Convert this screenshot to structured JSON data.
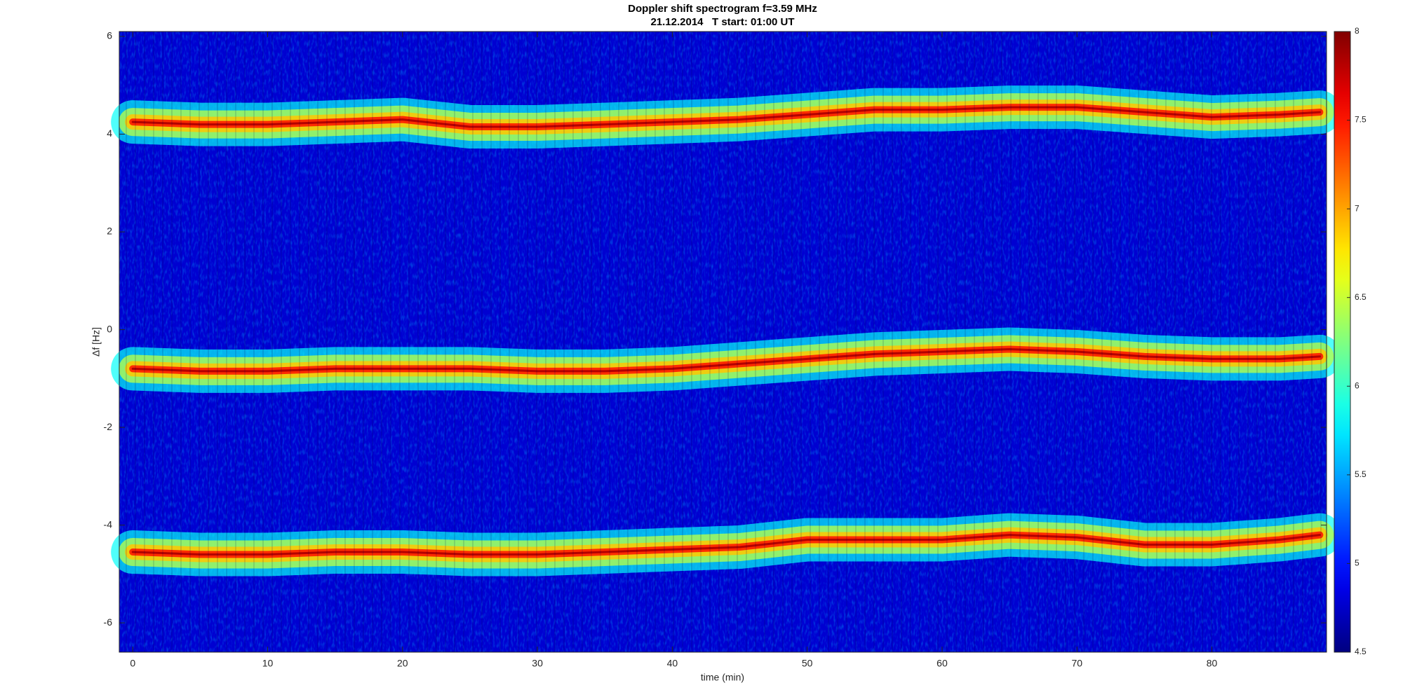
{
  "chart_data": {
    "type": "spectrogram",
    "title": "Doppler shift spectrogram f=3.59 MHz",
    "subtitle": "21.12.2014   T start: 01:00 UT",
    "x_label": "time (min)",
    "y_label": "Δf [Hz]",
    "x": [
      0,
      5,
      10,
      15,
      20,
      25,
      30,
      35,
      40,
      45,
      50,
      55,
      60,
      65,
      70,
      75,
      80,
      85,
      88
    ],
    "series": [
      {
        "values": [
          4.25,
          4.2,
          4.2,
          4.25,
          4.3,
          4.15,
          4.15,
          4.2,
          4.25,
          4.3,
          4.4,
          4.5,
          4.5,
          4.55,
          4.55,
          4.45,
          4.35,
          4.4,
          4.45
        ]
      },
      {
        "values": [
          -0.8,
          -0.85,
          -0.85,
          -0.8,
          -0.8,
          -0.8,
          -0.85,
          -0.85,
          -0.8,
          -0.7,
          -0.6,
          -0.5,
          -0.45,
          -0.4,
          -0.45,
          -0.55,
          -0.6,
          -0.6,
          -0.55
        ]
      },
      {
        "values": [
          -4.55,
          -4.6,
          -4.6,
          -4.55,
          -4.55,
          -4.6,
          -4.6,
          -4.55,
          -4.5,
          -4.45,
          -4.3,
          -4.3,
          -4.3,
          -4.2,
          -4.25,
          -4.4,
          -4.4,
          -4.3,
          -4.2
        ]
      }
    ],
    "xlim": [
      -1,
      88.5
    ],
    "xticks": [
      0,
      10,
      20,
      30,
      40,
      50,
      60,
      70,
      80
    ],
    "ylim": [
      -6.6,
      6.1
    ],
    "yticks": [
      -6,
      -4,
      -2,
      0,
      2,
      4,
      6
    ],
    "colormap": "jet",
    "clim": [
      4.5,
      8
    ],
    "cticks": [
      4.5,
      5,
      5.5,
      6,
      6.5,
      7,
      7.5,
      8
    ]
  }
}
